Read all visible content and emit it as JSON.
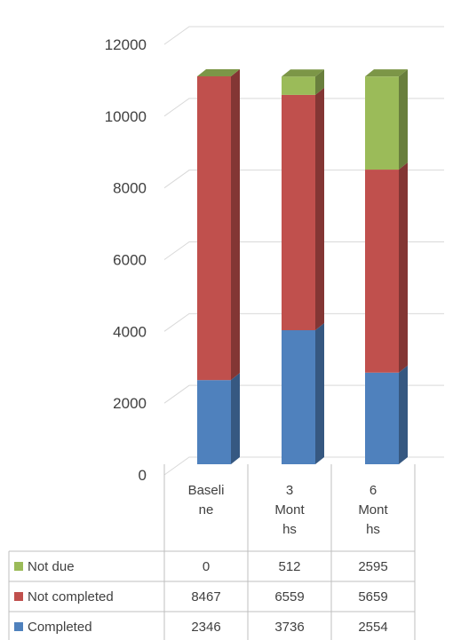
{
  "chart_data": {
    "type": "bar",
    "stacked": true,
    "three_d": true,
    "categories": [
      "Baseline",
      "3 Months",
      "6 Months"
    ],
    "category_label_lines": [
      [
        "Baseli",
        "ne"
      ],
      [
        "3",
        "Mont",
        "hs"
      ],
      [
        "6",
        "Mont",
        "hs"
      ]
    ],
    "series": [
      {
        "name": "Completed",
        "values": [
          2346,
          3736,
          2554
        ],
        "color": "#4f81bd"
      },
      {
        "name": "Not completed",
        "values": [
          8467,
          6559,
          5659
        ],
        "color": "#c0504d"
      },
      {
        "name": "Not due",
        "values": [
          0,
          512,
          2595
        ],
        "color": "#9bbb59"
      }
    ],
    "table_row_order": [
      "Not due",
      "Not completed",
      "Completed"
    ],
    "y_ticks": [
      "0",
      "2000",
      "4000",
      "6000",
      "8000",
      "10000",
      "12000"
    ],
    "ylim": [
      0,
      12000
    ],
    "grid": true,
    "legend": "data table below chart"
  }
}
